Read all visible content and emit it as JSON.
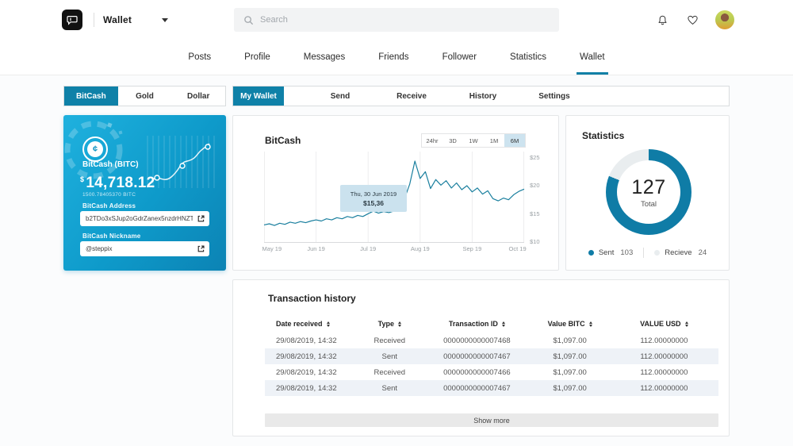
{
  "topbar": {
    "app_switcher_label": "Wallet",
    "search_placeholder": "Search"
  },
  "nav": {
    "tabs": [
      "Posts",
      "Profile",
      "Messages",
      "Friends",
      "Follower",
      "Statistics",
      "Wallet"
    ],
    "active_tab": "Wallet"
  },
  "currency_tabs": {
    "items": [
      "BitCash",
      "Gold",
      "Dollar"
    ],
    "active": "BitCash"
  },
  "wallet_tabs": {
    "items": [
      "My Wallet",
      "Send",
      "Receive",
      "History",
      "Settings"
    ],
    "active": "My Wallet"
  },
  "card": {
    "coin_symbol": "¢",
    "coin_name": "BitCash (BITC)",
    "currency_symbol": "$",
    "balance": "14,718.12",
    "balance_sub": "1500.78405370 BITC",
    "address_label": "BitCash Address",
    "address_value": "b2TDo3xSJup2oGdrZanex5nzdrHNZT...",
    "nickname_label": "BitCash Nickname",
    "nickname_value": "@steppix"
  },
  "chart": {
    "title": "BitCash",
    "ranges": [
      "24hr",
      "3D",
      "1W",
      "1M",
      "6M"
    ],
    "active_range": "6M",
    "tooltip_line1": "Thu, 30 Jun 2019",
    "tooltip_line2": "$15,36",
    "x_ticks": [
      "May 19",
      "Jun 19",
      "Jul 19",
      "Aug 19",
      "Sep 19",
      "Oct 19"
    ],
    "y_ticks": [
      {
        "label": "$25",
        "v": 25
      },
      {
        "label": "$20",
        "v": 20
      },
      {
        "label": "$15",
        "v": 15
      },
      {
        "label": "$10",
        "v": 10
      }
    ],
    "y_min": 9.7,
    "y_max": 26,
    "line_color": "#1a7f9e",
    "values": [
      12.9,
      13.1,
      12.8,
      13.2,
      13.0,
      13.4,
      13.2,
      13.5,
      13.3,
      13.6,
      13.8,
      13.6,
      14.0,
      13.8,
      14.2,
      14.0,
      14.4,
      14.2,
      14.6,
      14.4,
      14.9,
      15.36,
      15.0,
      15.3,
      15.1,
      15.4,
      18.4,
      17.6,
      20.2,
      24.3,
      21.2,
      22.4,
      19.4,
      21.0,
      20.0,
      20.8,
      19.5,
      20.4,
      19.2,
      19.9,
      18.8,
      19.5,
      18.4,
      19.0,
      17.6,
      17.2,
      17.7,
      17.4,
      18.3,
      18.9,
      19.3
    ]
  },
  "statistics": {
    "title": "Statistics",
    "total": "127",
    "total_label": "Total",
    "segments": [
      {
        "label": "Sent",
        "value": 103,
        "color": "#0f7ca6"
      },
      {
        "label": "Recieve",
        "value": 24,
        "color": "#e9edef"
      }
    ]
  },
  "transactions": {
    "title": "Transaction history",
    "columns": [
      "Date received",
      "Type",
      "Transaction ID",
      "Value BITC",
      "VALUE USD"
    ],
    "rows": [
      [
        "29/08/2019, 14:32",
        "Received",
        "0000000000007468",
        "$1,097.00",
        "112.00000000"
      ],
      [
        "29/08/2019, 14:32",
        "Sent",
        "0000000000007467",
        "$1,097.00",
        "112.00000000"
      ],
      [
        "29/08/2019, 14:32",
        "Received",
        "0000000000007466",
        "$1,097.00",
        "112.00000000"
      ],
      [
        "29/08/2019, 14:32",
        "Sent",
        "0000000000007467",
        "$1,097.00",
        "112.00000000"
      ]
    ],
    "show_more": "Show more"
  }
}
